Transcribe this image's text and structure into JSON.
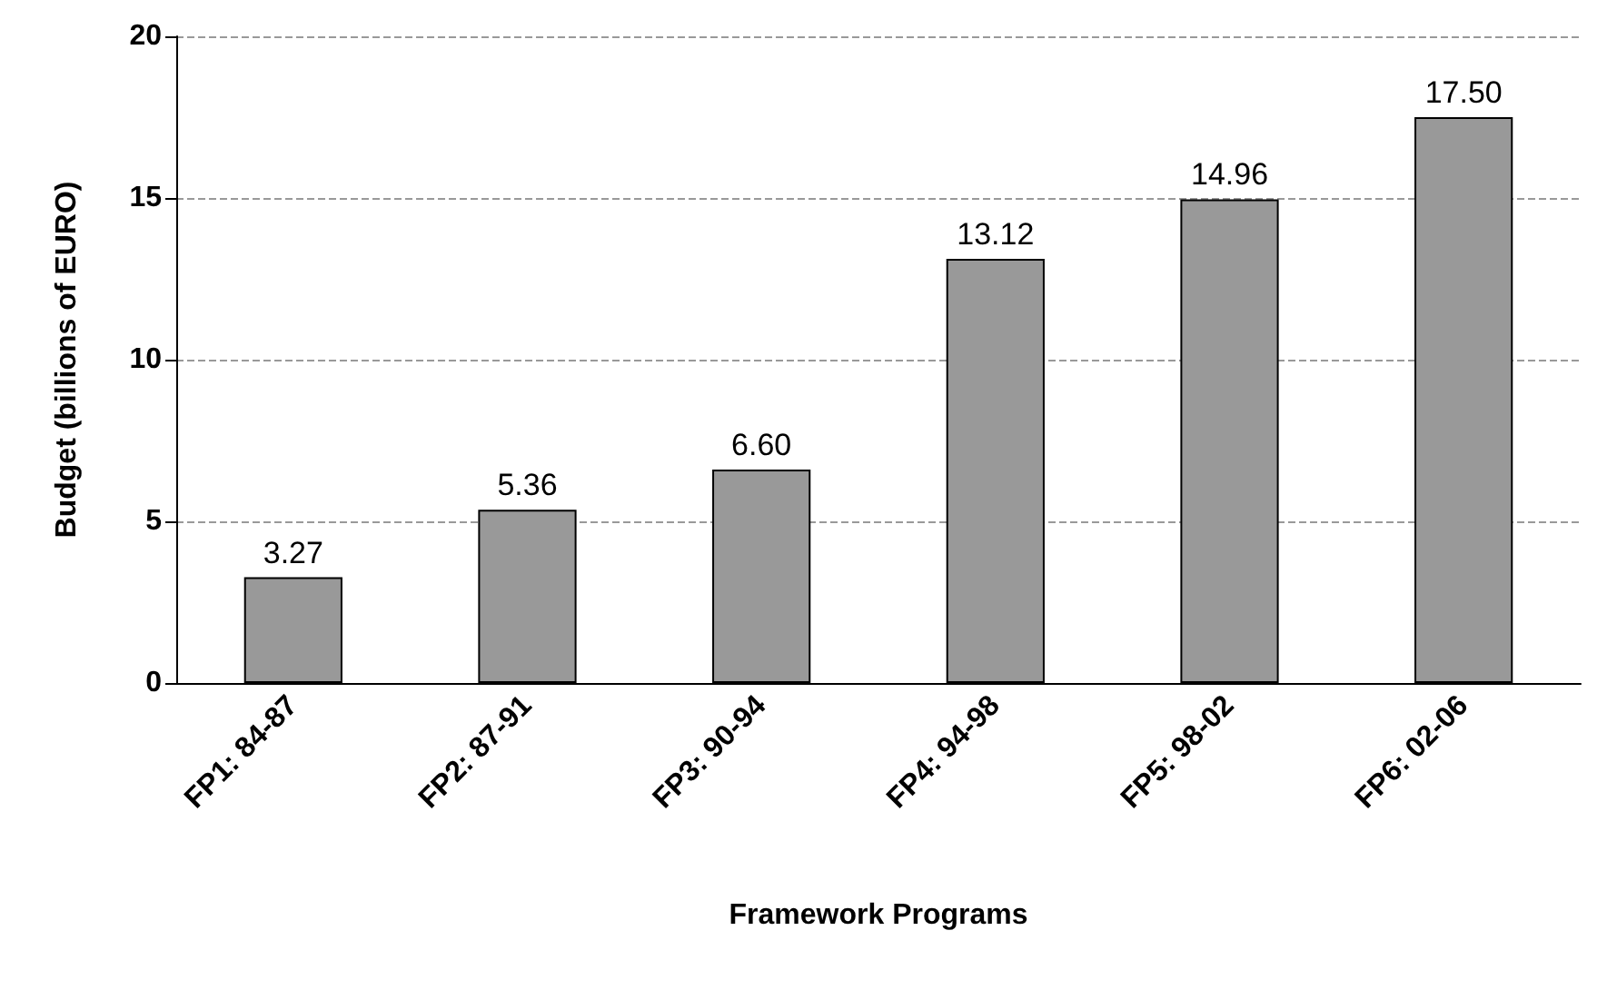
{
  "chart_data": {
    "type": "bar",
    "xlabel": "Framework Programs",
    "ylabel": "Budget (billions of EURO)",
    "categories": [
      "FP1: 84-87",
      "FP2: 87-91",
      "FP3: 90-94",
      "FP4: 94-98",
      "FP5: 98-02",
      "FP6: 02-06"
    ],
    "values": [
      3.27,
      5.36,
      6.6,
      13.12,
      14.96,
      17.5
    ],
    "value_labels": [
      "3.27",
      "5.36",
      "6.60",
      "13.12",
      "14.96",
      "17.50"
    ],
    "color": "#999999",
    "ylim": [
      0,
      20
    ],
    "yticks": [
      0,
      5,
      10,
      15,
      20
    ],
    "grid": "y"
  }
}
